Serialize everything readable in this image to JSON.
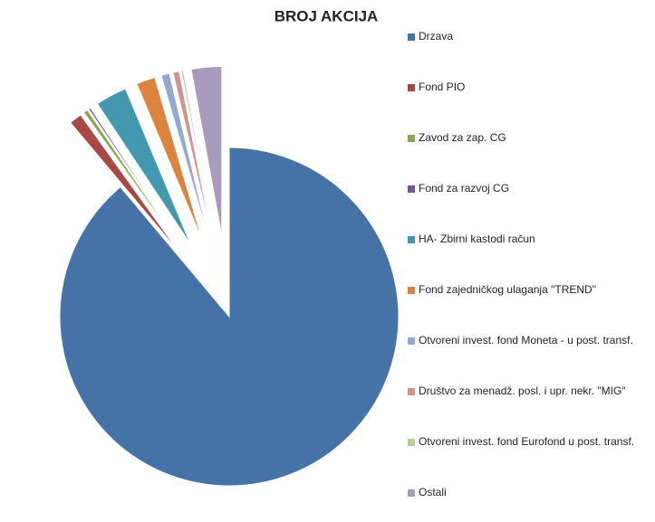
{
  "chart_data": {
    "type": "pie",
    "title": "BROJ AKCIJA",
    "categories": [
      "Drzava",
      "Fond PIO",
      "Zavod za zap. CG",
      "Fond za razvoj CG",
      "HA- Zbirni kastodi račun",
      "Fond zajedničkog ulaganja \"TREND\"",
      "Otvoreni invest. fond Moneta - u post. transf.",
      "Društvo za menadž. posl. i upr. nekr. \"MIG\"",
      "Otvoreni invest. fond Eurofond u post. transf.",
      "Ostali"
    ],
    "values": [
      88.9,
      1.2,
      0.4,
      0.2,
      3.0,
      1.8,
      0.8,
      0.6,
      0.2,
      2.9
    ],
    "colors": [
      "#4572A7",
      "#AA4643",
      "#89A54E",
      "#71588F",
      "#4198AF",
      "#DB843D",
      "#93A9CF",
      "#D19392",
      "#B9CD96",
      "#A99BBD"
    ],
    "legend": "right"
  }
}
